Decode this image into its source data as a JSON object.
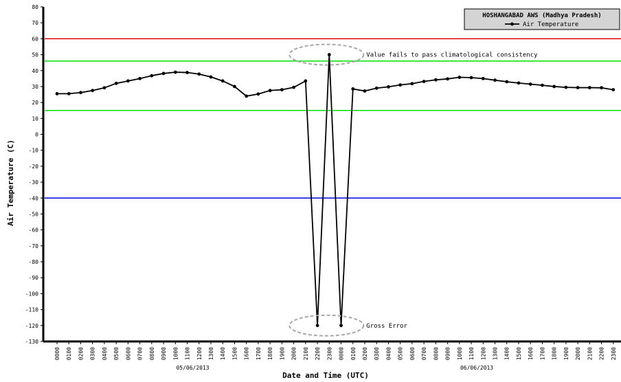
{
  "chart_data": {
    "type": "line",
    "ylabel": "Air Temperature (C)",
    "xlabel": "Date and Time (UTC)",
    "ylim": [
      -130,
      80
    ],
    "y_ticks": [
      80,
      70,
      60,
      50,
      40,
      30,
      20,
      10,
      0,
      -10,
      -20,
      -30,
      -40,
      -50,
      -60,
      -70,
      -80,
      -90,
      -100,
      -110,
      -120,
      -130
    ],
    "categories": [
      "0000",
      "0100",
      "0200",
      "0300",
      "0400",
      "0500",
      "0600",
      "0700",
      "0800",
      "0900",
      "1000",
      "1100",
      "1200",
      "1300",
      "1400",
      "1500",
      "1600",
      "1700",
      "1800",
      "1900",
      "2000",
      "2100",
      "2200",
      "2300",
      "0000",
      "0100",
      "0200",
      "0300",
      "0400",
      "0500",
      "0600",
      "0700",
      "0800",
      "0900",
      "1000",
      "1100",
      "1200",
      "1300",
      "1400",
      "1500",
      "1600",
      "1700",
      "1800",
      "1900",
      "2000",
      "2100",
      "2200",
      "2300"
    ],
    "date_labels": [
      {
        "text": "05/06/2013",
        "category_index": 11
      },
      {
        "text": "06/06/2013",
        "category_index": 35
      }
    ],
    "legend": {
      "title": "HOSHANGABAD AWS (Madhya Pradesh)",
      "placement": "top-right"
    },
    "series": [
      {
        "name": "Air Temperature",
        "color": "#000000",
        "values": [
          25.5,
          25.5,
          26.2,
          27.5,
          29.2,
          32.0,
          33.5,
          35.0,
          36.8,
          38.2,
          39.0,
          38.8,
          37.8,
          36.0,
          33.5,
          30.0,
          24.0,
          25.3,
          27.5,
          28.0,
          29.5,
          33.5,
          -120.0,
          50.0,
          -120.0,
          28.5,
          27.2,
          29.0,
          29.8,
          31.0,
          31.8,
          33.2,
          34.2,
          34.8,
          35.8,
          35.6,
          35.0,
          34.0,
          33.0,
          32.2,
          31.5,
          30.8,
          30.0,
          29.5,
          29.3,
          29.3,
          29.2,
          28.0
        ]
      }
    ],
    "reference_lines": [
      {
        "value": 60,
        "color": "#e00000"
      },
      {
        "value": 46,
        "color": "#00e000"
      },
      {
        "value": 15,
        "color": "#00e000"
      },
      {
        "value": -40,
        "color": "#0000e0"
      }
    ],
    "annotations": [
      {
        "text": "Value fails to pass climatological consistency",
        "category_index": 23,
        "value": 50
      },
      {
        "text": "Gross Error",
        "category_index": 23,
        "value": -120
      }
    ],
    "grid": false
  }
}
